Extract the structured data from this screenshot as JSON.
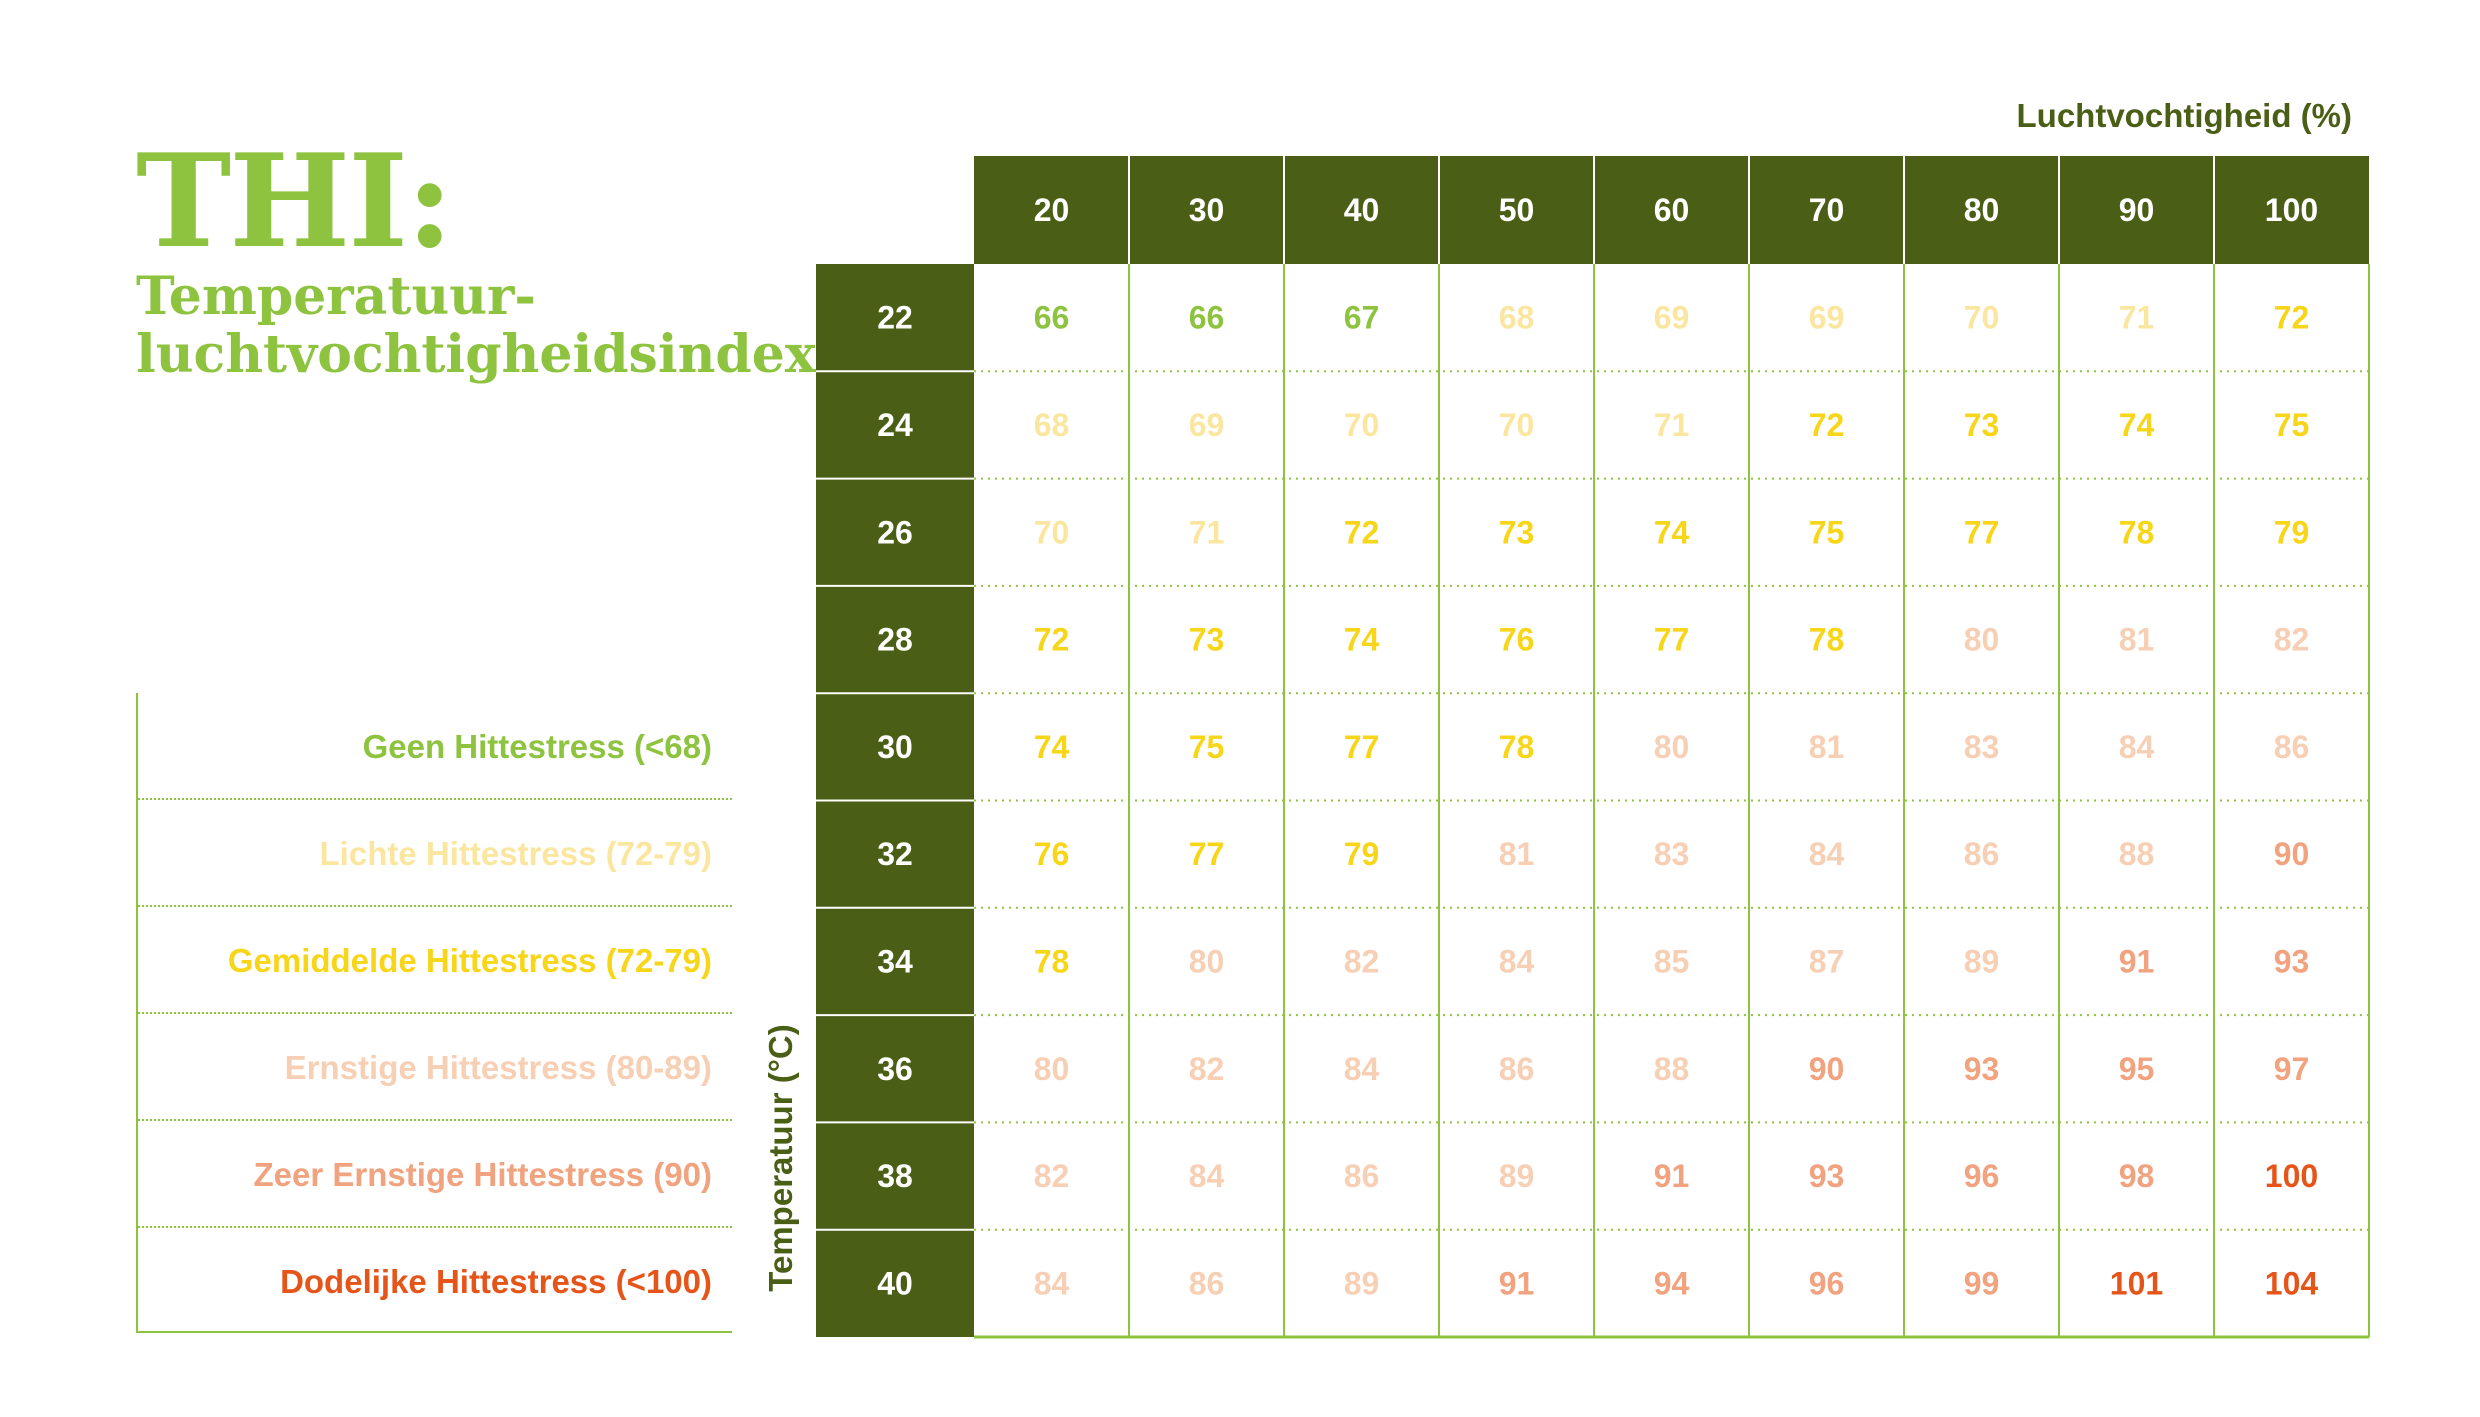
{
  "title": "THI:",
  "subtitle": "Temperatuur-luchtvochtigheidsindex",
  "colors": {
    "dark_green": "#4a5e16",
    "green": "#8dc33f",
    "light_yellow": "#fbe6a0",
    "yellow": "#f7d518",
    "light_peach": "#f7cfb4",
    "peach": "#f1a27f",
    "red_orange": "#e55418"
  },
  "legend": [
    {
      "label": "Geen Hittestress (<68)",
      "color": "#8dc33f"
    },
    {
      "label": "Lichte Hittestress (72-79)",
      "color": "#fbe6a0"
    },
    {
      "label": "Gemiddelde Hittestress (72-79)",
      "color": "#f7d518"
    },
    {
      "label": "Ernstige Hittestress (80-89)",
      "color": "#f7cfb4"
    },
    {
      "label": "Zeer Ernstige Hittestress (90)",
      "color": "#f1a27f"
    },
    {
      "label": "Dodelijke Hittestress (<100)",
      "color": "#e55418"
    }
  ],
  "chart_data": {
    "type": "heatmap",
    "xlabel": "Luchtvochtigheid (%)",
    "ylabel": "Temperatuur (°C)",
    "x": [
      20,
      30,
      40,
      50,
      60,
      70,
      80,
      90,
      100
    ],
    "y": [
      22,
      24,
      26,
      28,
      30,
      32,
      34,
      36,
      38,
      40
    ],
    "values": [
      [
        66,
        66,
        67,
        68,
        69,
        69,
        70,
        71,
        72
      ],
      [
        68,
        69,
        70,
        70,
        71,
        72,
        73,
        74,
        75
      ],
      [
        70,
        71,
        72,
        73,
        74,
        75,
        77,
        78,
        79
      ],
      [
        72,
        73,
        74,
        76,
        77,
        78,
        80,
        81,
        82
      ],
      [
        74,
        75,
        77,
        78,
        80,
        81,
        83,
        84,
        86
      ],
      [
        76,
        77,
        79,
        81,
        83,
        84,
        86,
        88,
        90
      ],
      [
        78,
        80,
        82,
        84,
        85,
        87,
        89,
        91,
        93
      ],
      [
        80,
        82,
        84,
        86,
        88,
        90,
        93,
        95,
        97
      ],
      [
        82,
        84,
        86,
        89,
        91,
        93,
        96,
        98,
        100
      ],
      [
        84,
        86,
        89,
        91,
        94,
        96,
        99,
        101,
        104
      ]
    ],
    "categories_by_cell": [
      [
        0,
        0,
        0,
        1,
        1,
        1,
        1,
        1,
        2
      ],
      [
        1,
        1,
        1,
        1,
        1,
        2,
        2,
        2,
        2
      ],
      [
        1,
        1,
        2,
        2,
        2,
        2,
        2,
        2,
        2
      ],
      [
        2,
        2,
        2,
        2,
        2,
        2,
        3,
        3,
        3
      ],
      [
        2,
        2,
        2,
        2,
        3,
        3,
        3,
        3,
        3
      ],
      [
        2,
        2,
        2,
        3,
        3,
        3,
        3,
        3,
        4
      ],
      [
        2,
        3,
        3,
        3,
        3,
        3,
        3,
        4,
        4
      ],
      [
        3,
        3,
        3,
        3,
        3,
        4,
        4,
        4,
        4
      ],
      [
        3,
        3,
        3,
        3,
        4,
        4,
        4,
        4,
        5
      ],
      [
        3,
        3,
        3,
        4,
        4,
        4,
        4,
        5,
        5
      ]
    ]
  }
}
